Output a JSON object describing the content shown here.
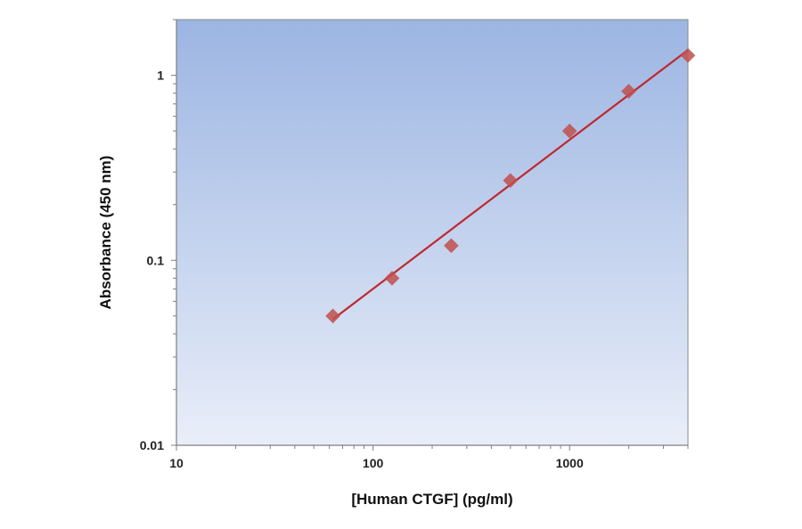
{
  "chart_data": {
    "type": "scatter",
    "title": "",
    "xlabel": "[Human CTGF] (pg/ml)",
    "ylabel": "Absorbance (450 nm)",
    "xscale": "log",
    "yscale": "log",
    "xlim": [
      10,
      4000
    ],
    "ylim": [
      0.01,
      2
    ],
    "xticks": [
      10,
      100,
      1000
    ],
    "xtick_labels": [
      "10",
      "100",
      "1000"
    ],
    "yticks": [
      0.01,
      0.1,
      1
    ],
    "ytick_labels": [
      "0.01",
      "0.1",
      "1"
    ],
    "grid": false,
    "legend": "none",
    "series": [
      {
        "x": [
          62.5,
          125,
          250,
          500,
          1000,
          2000,
          4000
        ],
        "y": [
          0.05,
          0.08,
          0.12,
          0.27,
          0.5,
          0.82,
          1.28
        ],
        "marker": "diamond",
        "color": "#c0504d"
      }
    ],
    "fit_line": {
      "x": [
        62.5,
        4000
      ],
      "y": [
        0.048,
        1.37
      ],
      "color": "#c0272d"
    },
    "plot_background": {
      "top": "#9cb5e2",
      "bottom": "#e9eef9"
    }
  }
}
